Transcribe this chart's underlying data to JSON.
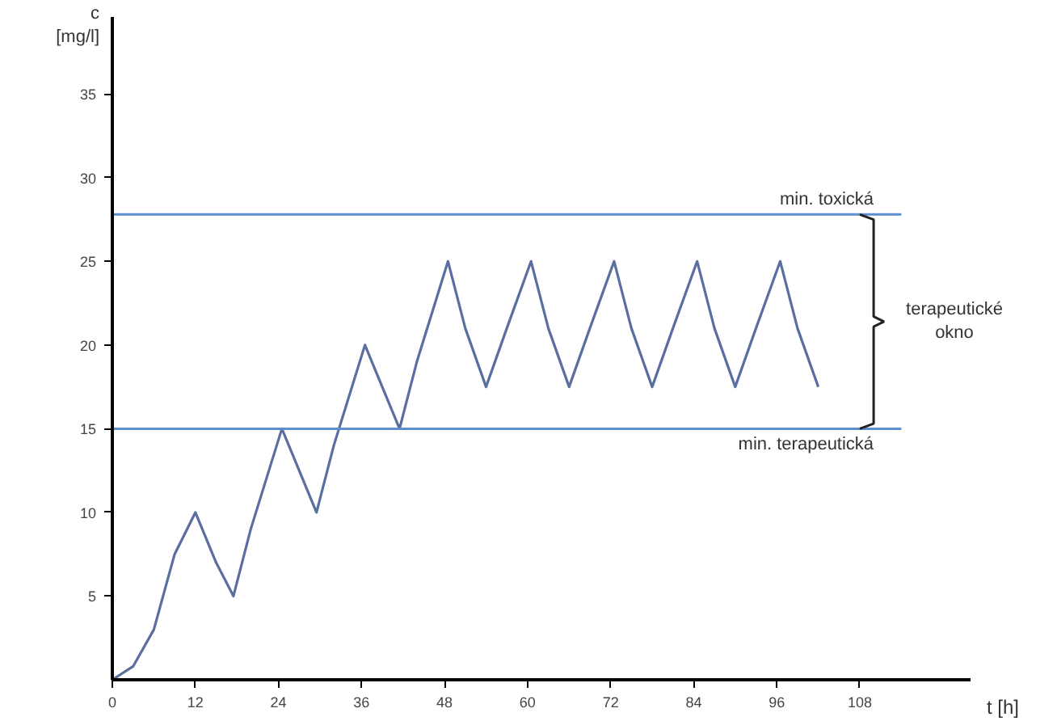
{
  "chart_data": {
    "type": "line",
    "xlabel": "t [h]",
    "ylabel": "c [mg/l]",
    "x": [
      0,
      3,
      6,
      9,
      12,
      15,
      17.5,
      20,
      24.5,
      27,
      29.5,
      32,
      36.5,
      39,
      41.5,
      44,
      48.5,
      51,
      54,
      57,
      60.5,
      63,
      66,
      69,
      72.5,
      75,
      78,
      81,
      84.5,
      87,
      90,
      93,
      96.5,
      99,
      102
    ],
    "series": [
      {
        "color": "#5a6fa0",
        "values": [
          0,
          0.8,
          3,
          7.5,
          10,
          7,
          5,
          9,
          15,
          12.5,
          10,
          14,
          20,
          17.5,
          15,
          19,
          25,
          21,
          17.5,
          21,
          25,
          21,
          17.5,
          21,
          25,
          21,
          17.5,
          21,
          25,
          21,
          17.5,
          21,
          25,
          21,
          17.5
        ]
      }
    ],
    "xlim": [
      0,
      124
    ],
    "ylim": [
      0,
      39.6
    ],
    "xticks": [
      0,
      12,
      24,
      36,
      48,
      60,
      72,
      84,
      96,
      108
    ],
    "yticks": [
      5,
      10,
      15,
      20,
      25,
      30,
      35
    ],
    "ref_lines": [
      {
        "axis": "y",
        "value": 27.8,
        "label": "min. toxická",
        "color": "#5b8fd0"
      },
      {
        "axis": "y",
        "value": 15,
        "label": "min. terapeutická",
        "color": "#5b8fd0"
      }
    ],
    "annotations": [
      "terapeutické okno"
    ],
    "grid": false,
    "marker": "none",
    "line_style": "solid"
  }
}
